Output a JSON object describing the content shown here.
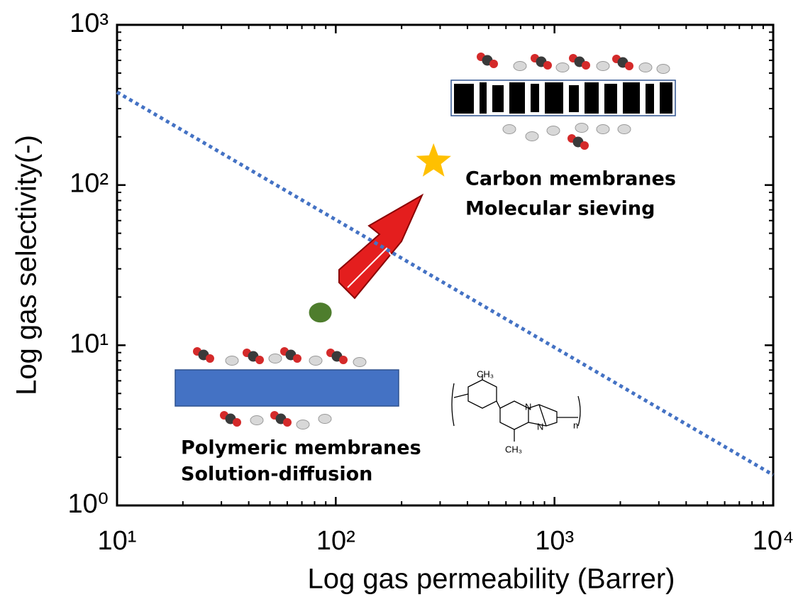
{
  "chart_data": {
    "type": "scatter",
    "x_label": "Log gas permeability (Barrer)",
    "y_label": "Log gas selectivity(-)",
    "log_x": true,
    "log_y": true,
    "xlim": [
      10,
      10000
    ],
    "ylim": [
      1,
      1000
    ],
    "xticks": [
      {
        "value": 10,
        "label": "10¹"
      },
      {
        "value": 100,
        "label": "10²"
      },
      {
        "value": 1000,
        "label": "10³"
      },
      {
        "value": 10000,
        "label": "10⁴"
      }
    ],
    "yticks": [
      {
        "value": 1,
        "label": "10⁰"
      },
      {
        "value": 10,
        "label": "10¹"
      },
      {
        "value": 100,
        "label": "10²"
      },
      {
        "value": 1000,
        "label": "10³"
      }
    ],
    "xminorticks": [
      20,
      30,
      40,
      50,
      60,
      70,
      80,
      90,
      200,
      300,
      400,
      500,
      600,
      700,
      800,
      900,
      2000,
      3000,
      4000,
      5000,
      6000,
      7000,
      8000,
      9000
    ],
    "yminorticks": [
      2,
      3,
      4,
      5,
      6,
      7,
      8,
      9,
      20,
      30,
      40,
      50,
      60,
      70,
      80,
      90,
      200,
      300,
      400,
      500,
      600,
      700,
      800,
      900
    ],
    "series": [
      {
        "marker": "circle",
        "color": "#4e7d2d",
        "x": [
          85
        ],
        "values": [
          16
        ]
      },
      {
        "marker": "star",
        "color": "#ffc000",
        "x": [
          280
        ],
        "values": [
          140
        ]
      },
      {
        "marker": "dotted-line",
        "color": "#4472c4",
        "x": [
          10,
          10000
        ],
        "values": [
          380,
          1.55
        ]
      }
    ],
    "annotations": [
      "Carbon membranes",
      "Molecular sieving",
      "Polymeric membranes",
      "Solution-diffusion"
    ],
    "structure_labels": [
      "CH₃",
      "CH₃",
      "N",
      "N",
      "n"
    ]
  }
}
